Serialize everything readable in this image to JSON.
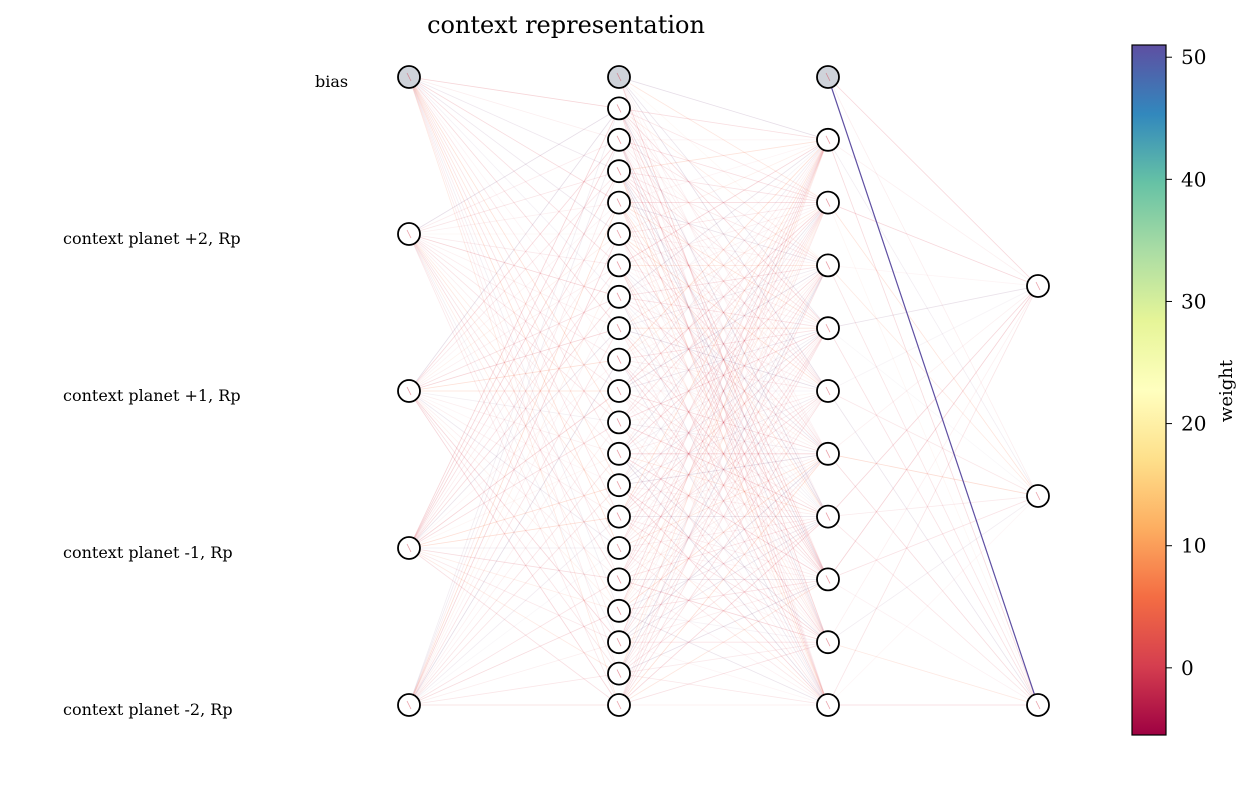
{
  "title": "context representation",
  "bias_label": "bias",
  "input_labels": [
    "context planet +2, Rp",
    "context planet +1, Rp",
    "context planet -1, Rp",
    "context planet -2, Rp"
  ],
  "layers": [
    {
      "bias": true,
      "units": 4
    },
    {
      "bias": true,
      "units": 20
    },
    {
      "bias": true,
      "units": 10
    },
    {
      "bias": false,
      "units": 3
    }
  ],
  "colorbar": {
    "label": "weight",
    "min": -5.5,
    "max": 51,
    "ticks": [
      "0",
      "10",
      "20",
      "30",
      "40",
      "50"
    ],
    "colormap": "Spectral"
  },
  "highlight_edge": {
    "from_layer": 2,
    "from_node": "bias",
    "to_layer": 3,
    "to_node": 2,
    "weight": 51
  },
  "colors": {
    "bias_fill": "#cfd3da",
    "node_stroke": "#000000"
  }
}
